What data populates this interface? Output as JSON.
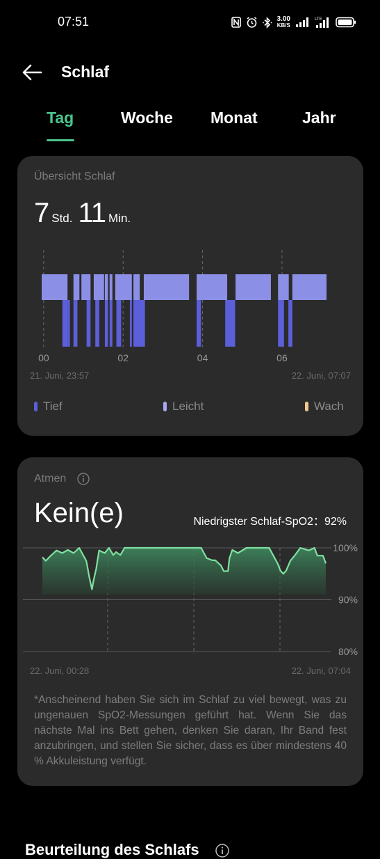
{
  "status_bar": {
    "time": "07:51",
    "net_speed_value": "3.00",
    "net_speed_unit": "KB/S",
    "icons": [
      "nfc-icon",
      "alarm-icon",
      "bluetooth-icon",
      "network-speed",
      "signal-icon",
      "lte-signal-icon",
      "battery-icon"
    ]
  },
  "header": {
    "title": "Schlaf",
    "back_icon": "arrow-left-icon"
  },
  "tabs": [
    {
      "label": "Tag",
      "active": true
    },
    {
      "label": "Woche",
      "active": false
    },
    {
      "label": "Monat",
      "active": false
    },
    {
      "label": "Jahr",
      "active": false
    }
  ],
  "sleep_card": {
    "title": "Übersicht Schlaf",
    "hours_value": "7",
    "hours_unit": "Std.",
    "minutes_value": "11",
    "minutes_unit": "Min.",
    "x_ticks": [
      "00",
      "02",
      "04",
      "06"
    ],
    "start_label": "21. Juni, 23:57",
    "end_label": "22. Juni, 07:07",
    "legend": [
      {
        "label": "Tief",
        "color": "#5b5fd9"
      },
      {
        "label": "Leicht",
        "color": "#a5a9f2"
      },
      {
        "label": "Wach",
        "color": "#f4c98d"
      }
    ]
  },
  "breath_card": {
    "title": "Atmen",
    "status_value": "Kein(e)",
    "lowest_label": "Niedrigster Schlaf-SpO2：",
    "lowest_value": "92%",
    "start_label": "22. Juni, 00:28",
    "end_label": "22. Juni, 07:04",
    "note": "*Anscheinend haben Sie sich im Schlaf zu viel bewegt, was zu ungenauen SpO2-Messungen geführt hat. Wenn Sie das nächste Mal ins Bett gehen, denken Sie daran, Ihr Band fest anzubringen, und stellen Sie sicher, dass es über mindestens 40 % Akkuleistung verfügt."
  },
  "next_section": {
    "title": "Beurteilung des Schlafs"
  },
  "colors": {
    "accent": "#4cc58d",
    "card_bg": "#2b2b2b",
    "light_sleep": "#8c8fe6",
    "deep_sleep": "#5b5fd9",
    "spo2_line": "#7fe0a0"
  },
  "chart_data": [
    {
      "type": "bar",
      "title": "",
      "x_unit": "hours since 00:00",
      "x_range": [
        -0.05,
        7.12
      ],
      "x_ticks": [
        "00",
        "02",
        "04",
        "06"
      ],
      "stages": [
        "Leicht",
        "Tief"
      ],
      "segments": [
        {
          "stage": "Leicht",
          "start": -0.05,
          "end": 0.6
        },
        {
          "stage": "Tief",
          "start": 0.47,
          "end": 0.6
        },
        {
          "stage": "Tief",
          "start": 0.6,
          "end": 0.66
        },
        {
          "stage": "Leicht",
          "start": 0.75,
          "end": 0.9
        },
        {
          "stage": "Tief",
          "start": 0.75,
          "end": 0.85
        },
        {
          "stage": "Leicht",
          "start": 0.95,
          "end": 1.18
        },
        {
          "stage": "Tief",
          "start": 1.08,
          "end": 1.18
        },
        {
          "stage": "Leicht",
          "start": 1.26,
          "end": 1.52
        },
        {
          "stage": "Tief",
          "start": 1.3,
          "end": 1.4
        },
        {
          "stage": "Leicht",
          "start": 1.54,
          "end": 1.62
        },
        {
          "stage": "Tief",
          "start": 1.54,
          "end": 1.62
        },
        {
          "stage": "Leicht",
          "start": 1.66,
          "end": 1.73
        },
        {
          "stage": "Tief",
          "start": 1.66,
          "end": 1.73
        },
        {
          "stage": "Leicht",
          "start": 1.8,
          "end": 2.22
        },
        {
          "stage": "Tief",
          "start": 1.83,
          "end": 1.95
        },
        {
          "stage": "Tief",
          "start": 2.17,
          "end": 2.22
        },
        {
          "stage": "Leicht",
          "start": 2.26,
          "end": 2.42
        },
        {
          "stage": "Tief",
          "start": 2.26,
          "end": 2.55
        },
        {
          "stage": "Leicht",
          "start": 2.52,
          "end": 3.66
        },
        {
          "stage": "Leicht",
          "start": 3.85,
          "end": 4.62
        },
        {
          "stage": "Tief",
          "start": 3.85,
          "end": 3.96
        },
        {
          "stage": "Tief",
          "start": 4.57,
          "end": 4.82
        },
        {
          "stage": "Leicht",
          "start": 4.83,
          "end": 5.72
        },
        {
          "stage": "Leicht",
          "start": 5.9,
          "end": 6.17
        },
        {
          "stage": "Tief",
          "start": 5.9,
          "end": 6.05
        },
        {
          "stage": "Leicht",
          "start": 6.26,
          "end": 7.12
        },
        {
          "stage": "Tief",
          "start": 6.16,
          "end": 6.26
        }
      ]
    },
    {
      "type": "area",
      "title": "",
      "y_ticks": [
        "100%",
        "90%",
        "80%"
      ],
      "ylim": [
        80,
        100
      ],
      "xlim": [
        0,
        1
      ],
      "x": [
        0,
        0.012,
        0.03,
        0.05,
        0.07,
        0.09,
        0.11,
        0.13,
        0.14,
        0.155,
        0.16,
        0.165,
        0.17,
        0.175,
        0.18,
        0.19,
        0.2,
        0.22,
        0.235,
        0.25,
        0.26,
        0.275,
        0.29,
        0.3,
        0.33,
        0.38,
        0.44,
        0.5,
        0.56,
        0.57,
        0.58,
        0.6,
        0.61,
        0.63,
        0.64,
        0.655,
        0.66,
        0.67,
        0.69,
        0.72,
        0.76,
        0.8,
        0.815,
        0.83,
        0.84,
        0.85,
        0.86,
        0.875,
        0.89,
        0.91,
        0.94,
        0.96,
        0.97,
        0.99,
        1
      ],
      "values": [
        98.2,
        97.5,
        98.5,
        99.5,
        99,
        99.6,
        99,
        100,
        99,
        97.5,
        96,
        94.5,
        93.2,
        92,
        93.5,
        96,
        99.5,
        99,
        100,
        98.6,
        99.2,
        98.6,
        100,
        100,
        100,
        100,
        100,
        100,
        100,
        99,
        98,
        97.6,
        97.6,
        96.6,
        95.5,
        95.5,
        98,
        99.6,
        99,
        100,
        100,
        100,
        98.5,
        97,
        95.6,
        95,
        95.6,
        97.5,
        98.5,
        100,
        99.5,
        100,
        98.5,
        98.5,
        97
      ]
    }
  ]
}
